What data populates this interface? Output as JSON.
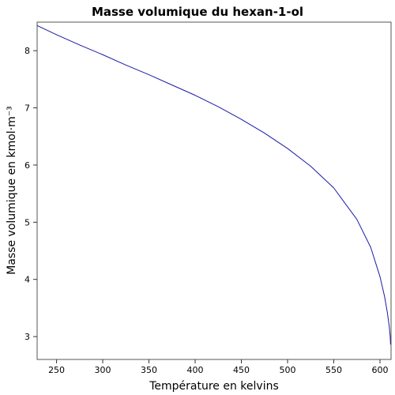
{
  "chart_data": {
    "type": "line",
    "title": "Masse volumique du hexan-1-ol",
    "xlabel": "Température en kelvins",
    "ylabel": "Masse volumique en kmol·m⁻³",
    "xlim": [
      229,
      612
    ],
    "ylim": [
      2.6,
      8.5
    ],
    "xticks": [
      250,
      300,
      350,
      400,
      450,
      500,
      550,
      600
    ],
    "yticks": [
      3,
      4,
      5,
      6,
      7,
      8
    ],
    "grid": false,
    "legend": "none",
    "series": [
      {
        "color": "#1a1aa6",
        "x": [
          229,
          250,
          275,
          300,
          325,
          350,
          375,
          400,
          425,
          450,
          475,
          500,
          525,
          550,
          575,
          590,
          600,
          605,
          608,
          610,
          611,
          611.5
        ],
        "y": [
          8.44,
          8.28,
          8.1,
          7.93,
          7.75,
          7.58,
          7.4,
          7.22,
          7.02,
          6.8,
          6.56,
          6.29,
          5.98,
          5.6,
          5.05,
          4.56,
          4.05,
          3.7,
          3.42,
          3.18,
          3.02,
          2.86
        ]
      }
    ]
  }
}
